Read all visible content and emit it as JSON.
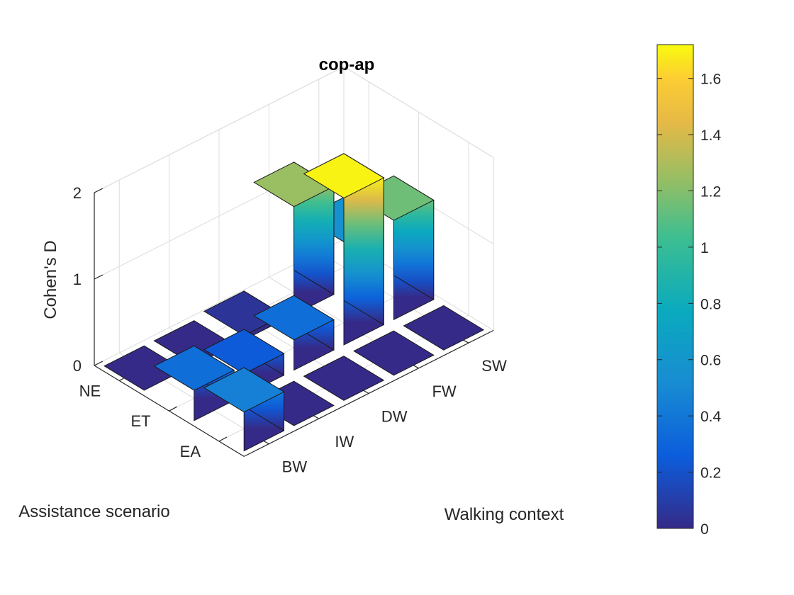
{
  "chart_data": {
    "type": "bar3",
    "title": "cop-ap",
    "xlabel": "Walking context",
    "ylabel": "Assistance scenario",
    "zlabel": "Cohen's D",
    "x_categories": [
      "BW",
      "IW",
      "DW",
      "FW",
      "SW"
    ],
    "y_categories": [
      "NE",
      "ET",
      "EA"
    ],
    "z_ticks": [
      "0",
      "1",
      "2"
    ],
    "zlim": [
      0,
      2
    ],
    "values": [
      [
        0.0,
        0.0,
        0.05,
        1.25,
        0.55
      ],
      [
        0.35,
        0.25,
        0.35,
        1.7,
        1.15
      ],
      [
        0.45,
        0.0,
        0.0,
        0.0,
        0.0
      ]
    ],
    "colorbar": {
      "range": [
        0,
        1.72
      ],
      "ticks": [
        "0",
        "0.2",
        "0.4",
        "0.6",
        "0.8",
        "1",
        "1.2",
        "1.4",
        "1.6"
      ],
      "colormap": "parula"
    },
    "grid": true
  }
}
